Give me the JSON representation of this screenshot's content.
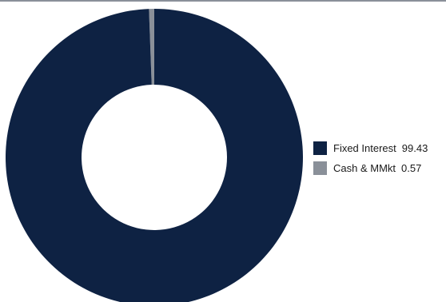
{
  "chart_data": {
    "type": "pie",
    "style": "donut",
    "title": "",
    "legend_position": "right",
    "series": [
      {
        "name": "Fixed Interest",
        "value": 99.43,
        "display": "99.43",
        "color": "#0e2243"
      },
      {
        "name": "Cash & MMkt",
        "value": 0.57,
        "display": "0.57",
        "color": "#8a9099"
      }
    ]
  }
}
